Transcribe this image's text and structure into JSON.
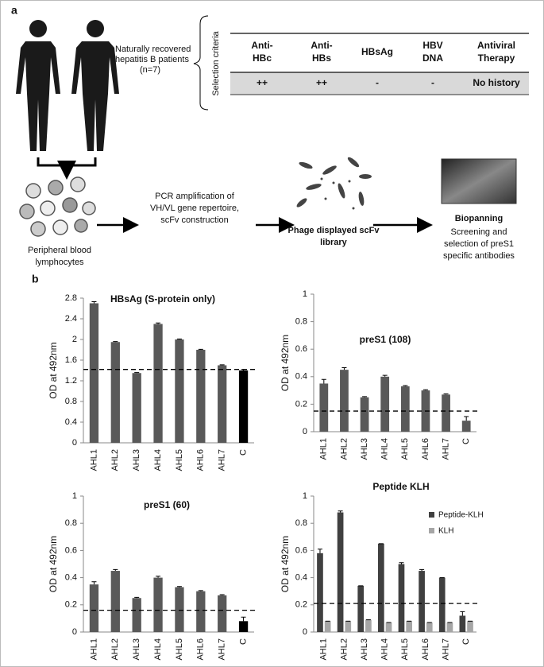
{
  "panel_a": {
    "label": "a",
    "patients": [
      "Naturally recovered",
      "hepatitis B patients",
      "(n=7)"
    ],
    "criteria_label": "Selection criteria",
    "table": {
      "header": [
        [
          "Anti-",
          "HBc"
        ],
        [
          "Anti-",
          "HBs"
        ],
        [
          "HBsAg"
        ],
        [
          "HBV",
          "DNA"
        ],
        [
          "Antiviral",
          "Therapy"
        ]
      ],
      "row": [
        "++",
        "++",
        "-",
        "-",
        "No history"
      ]
    },
    "steps": [
      {
        "lines": [
          "Peripheral blood",
          "lymphocytes"
        ]
      },
      {
        "lines": [
          "PCR amplification  of",
          "VH/VL gene repertoire,",
          "scFv construction"
        ]
      },
      {
        "lines": [
          "Phage displayed scFv",
          "library"
        ]
      },
      {
        "title": "Biopanning",
        "lines": [
          "Screening and",
          "selection of preS1",
          "specific antibodies"
        ]
      }
    ]
  },
  "panel_b_label": "b",
  "chart_data": [
    {
      "type": "bar",
      "title": "HBsAg (S-protein only)",
      "y_label": "OD at 492nm",
      "categories": [
        "AHL1",
        "AHL2",
        "AHL3",
        "AHL4",
        "AHL5",
        "AHL6",
        "AHL7",
        "C"
      ],
      "values": [
        2.7,
        1.95,
        1.35,
        2.3,
        2.0,
        1.8,
        1.5,
        1.4
      ],
      "errors": [
        0.03,
        0.01,
        0.01,
        0.02,
        0.01,
        0.01,
        0.01,
        0.02
      ],
      "colors": [
        "#595959",
        "#595959",
        "#595959",
        "#595959",
        "#595959",
        "#595959",
        "#595959",
        "#000000"
      ],
      "cutoff": 1.42,
      "ylim": [
        0,
        2.8
      ],
      "yticks": [
        0,
        0.4,
        0.8,
        1.2,
        1.6,
        2,
        2.4,
        2.8
      ]
    },
    {
      "type": "bar",
      "title": "preS1 (108)",
      "y_label": "OD at 492nm",
      "categories": [
        "AHL1",
        "AHL2",
        "AHL3",
        "AHL4",
        "AHL5",
        "AHL6",
        "AHL7",
        "C"
      ],
      "values": [
        0.35,
        0.45,
        0.25,
        0.4,
        0.33,
        0.3,
        0.27,
        0.08
      ],
      "errors": [
        0.03,
        0.015,
        0.005,
        0.01,
        0.005,
        0.005,
        0.005,
        0.03
      ],
      "colors": [
        "#595959",
        "#595959",
        "#595959",
        "#595959",
        "#595959",
        "#595959",
        "#595959",
        "#595959"
      ],
      "cutoff": 0.15,
      "ylim": [
        0,
        1
      ],
      "yticks": [
        0,
        0.2,
        0.4,
        0.6,
        0.8,
        1
      ]
    },
    {
      "type": "bar",
      "title": "preS1 (60)",
      "y_label": "OD at 492nm",
      "categories": [
        "AHL1",
        "AHL2",
        "AHL3",
        "AHL4",
        "AHL5",
        "AHL6",
        "AHL7",
        "C"
      ],
      "values": [
        0.35,
        0.45,
        0.25,
        0.4,
        0.33,
        0.3,
        0.27,
        0.08
      ],
      "errors": [
        0.02,
        0.01,
        0.005,
        0.01,
        0.005,
        0.005,
        0.005,
        0.03
      ],
      "colors": [
        "#595959",
        "#595959",
        "#595959",
        "#595959",
        "#595959",
        "#595959",
        "#595959",
        "#000000"
      ],
      "cutoff": 0.16,
      "ylim": [
        0,
        1
      ],
      "yticks": [
        0,
        0.2,
        0.4,
        0.6,
        0.8,
        1
      ]
    },
    {
      "type": "grouped-bar",
      "title": "Peptide KLH",
      "y_label": "OD at 492nm",
      "categories": [
        "AHL1",
        "AHL2",
        "AHL3",
        "AHL4",
        "AHL5",
        "AHL6",
        "AHL7",
        "C"
      ],
      "series": [
        {
          "name": "Peptide-KLH",
          "color": "#404040",
          "values": [
            0.58,
            0.88,
            0.34,
            0.65,
            0.5,
            0.45,
            0.4,
            0.12
          ],
          "errors": [
            0.03,
            0.01,
            0,
            0,
            0.01,
            0.01,
            0,
            0.03
          ]
        },
        {
          "name": "KLH",
          "color": "#a6a6a6",
          "values": [
            0.08,
            0.08,
            0.09,
            0.07,
            0.08,
            0.07,
            0.07,
            0.08
          ],
          "errors": [
            0,
            0,
            0,
            0,
            0,
            0,
            0,
            0
          ]
        }
      ],
      "legend": "top-right",
      "cutoff": 0.21,
      "ylim": [
        0,
        1
      ],
      "yticks": [
        0,
        0.2,
        0.4,
        0.6,
        0.8,
        1
      ]
    }
  ]
}
